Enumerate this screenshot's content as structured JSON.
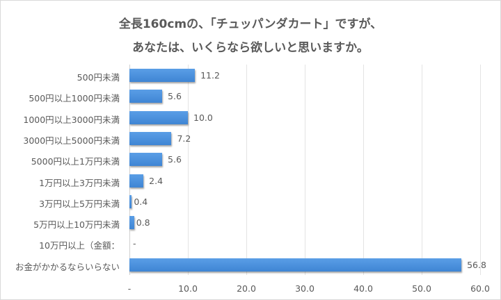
{
  "chart_data": {
    "type": "bar",
    "orientation": "horizontal",
    "title": "全長160cmの、「チュッパンダカート」ですが、あなたは、いくらなら欲しいと思いますか。",
    "title_lines": [
      "全長160cmの、「チュッパンダカート」ですが、",
      "あなたは、いくらなら欲しいと思いますか。"
    ],
    "categories": [
      "500円未満",
      "500円以上1000円未満",
      "1000円以上3000円未満",
      "3000円以上5000円未満",
      "5000円以上1万円未満",
      "1万円以上3万円未満",
      "3万円以上5万円未満",
      "5万円以上10万円未満",
      "10万円以上（金額：",
      "お金がかかるならいらない"
    ],
    "values": [
      11.2,
      5.6,
      10.0,
      7.2,
      5.6,
      2.4,
      0.4,
      0.8,
      0,
      56.8
    ],
    "value_labels": [
      "11.2",
      "5.6",
      "10.0",
      "7.2",
      "5.6",
      "2.4",
      "0.4",
      "0.8",
      "-",
      "56.8"
    ],
    "xlabel": "",
    "ylabel": "",
    "xlim": [
      0,
      60
    ],
    "x_ticks": [
      "-",
      "10.0",
      "20.0",
      "30.0",
      "40.0",
      "50.0",
      "60.0"
    ],
    "grid": true,
    "legend": null,
    "bar_color": "#4a8fdc"
  }
}
